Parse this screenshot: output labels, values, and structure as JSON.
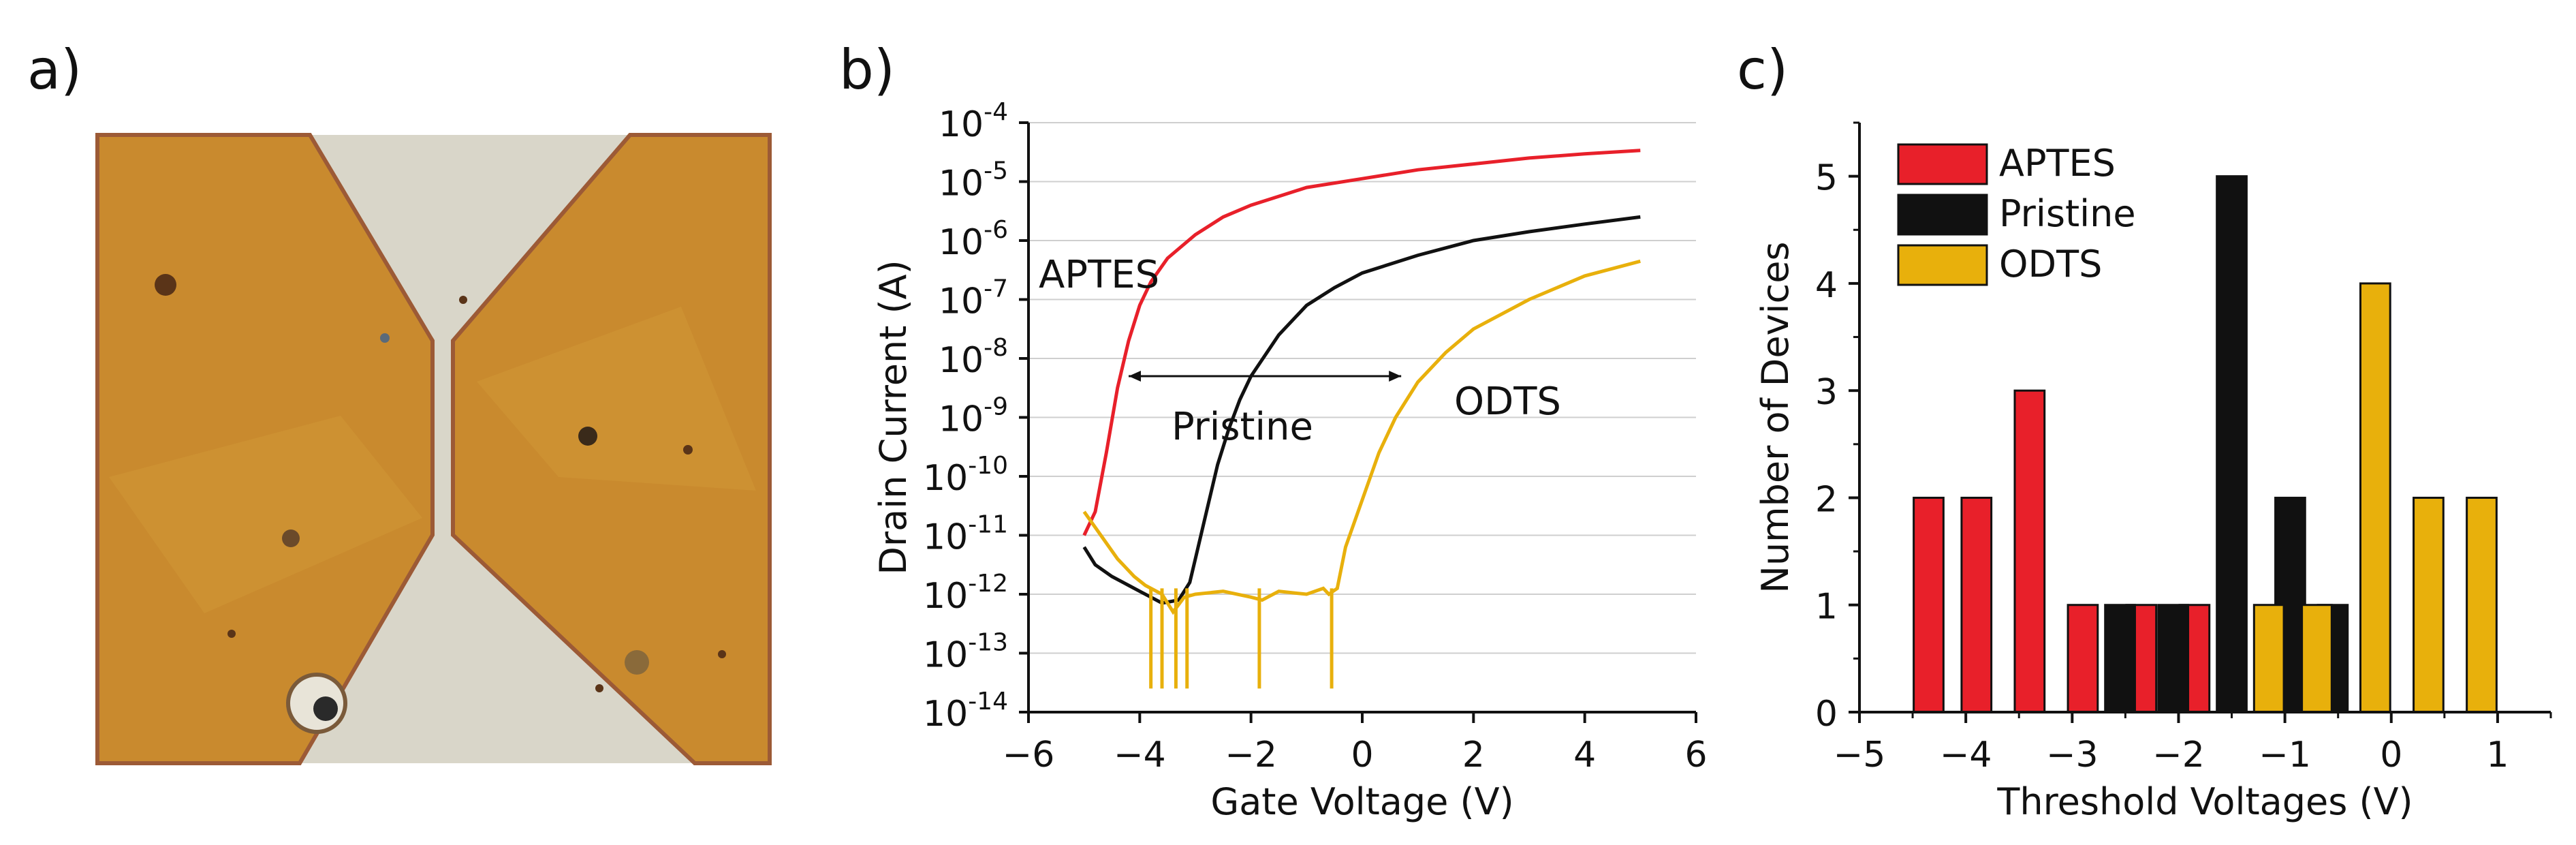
{
  "panels": {
    "a": {
      "label": "a)"
    },
    "b": {
      "label": "b)"
    },
    "c": {
      "label": "c)"
    }
  },
  "colors": {
    "aptes": "#e8202a",
    "pristine": "#111111",
    "odts": "#e8b00c",
    "electrode": "#c98a2e",
    "channel": "#d9d6c9"
  },
  "chart_data": [
    {
      "id": "b",
      "type": "line",
      "xlabel": "Gate Voltage (V)",
      "ylabel": "Drain Current (A)",
      "xlim": [
        -6,
        6
      ],
      "xticks": [
        -6,
        -4,
        -2,
        0,
        2,
        4,
        6
      ],
      "ylim_exp": [
        -14,
        -4
      ],
      "yscale": "log",
      "ytick_labels": [
        {
          "base": "10",
          "exp": "-4"
        },
        {
          "base": "10",
          "exp": "-5"
        },
        {
          "base": "10",
          "exp": "-6"
        },
        {
          "base": "10",
          "exp": "-7"
        },
        {
          "base": "10",
          "exp": "-8"
        },
        {
          "base": "10",
          "exp": "-9"
        },
        {
          "base": "10",
          "exp": "-10"
        },
        {
          "base": "10",
          "exp": "-11"
        },
        {
          "base": "10",
          "exp": "-12"
        },
        {
          "base": "10",
          "exp": "-13"
        },
        {
          "base": "10",
          "exp": "-14"
        }
      ],
      "grid": true,
      "series": [
        {
          "name": "APTES",
          "color": "#e8202a",
          "x": [
            -5.0,
            -4.8,
            -4.6,
            -4.4,
            -4.2,
            -4.0,
            -3.8,
            -3.5,
            -3.0,
            -2.5,
            -2.0,
            -1.5,
            -1.0,
            0.0,
            1.0,
            2.0,
            3.0,
            4.0,
            5.0
          ],
          "log_y": [
            -11.0,
            -10.6,
            -9.6,
            -8.5,
            -7.7,
            -7.1,
            -6.7,
            -6.3,
            -5.9,
            -5.6,
            -5.4,
            -5.25,
            -5.1,
            -4.95,
            -4.8,
            -4.7,
            -4.6,
            -4.53,
            -4.47
          ]
        },
        {
          "name": "Pristine",
          "color": "#111111",
          "x": [
            -5.0,
            -4.8,
            -4.5,
            -4.2,
            -4.0,
            -3.8,
            -3.6,
            -3.3,
            -3.1,
            -3.0,
            -2.8,
            -2.6,
            -2.4,
            -2.2,
            -2.0,
            -1.5,
            -1.0,
            -0.5,
            0.0,
            1.0,
            2.0,
            3.0,
            4.0,
            5.0
          ],
          "log_y": [
            -11.2,
            -11.5,
            -11.7,
            -11.85,
            -11.95,
            -12.05,
            -12.15,
            -12.1,
            -11.8,
            -11.4,
            -10.6,
            -9.8,
            -9.2,
            -8.7,
            -8.3,
            -7.6,
            -7.1,
            -6.8,
            -6.55,
            -6.25,
            -6.0,
            -5.85,
            -5.72,
            -5.6
          ]
        },
        {
          "name": "ODTS",
          "color": "#e8b00c",
          "x": [
            -5.0,
            -4.7,
            -4.4,
            -4.1,
            -3.9,
            -3.6,
            -3.4,
            -3.2,
            -3.0,
            -2.5,
            -2.0,
            -1.8,
            -1.5,
            -1.0,
            -0.7,
            -0.6,
            -0.45,
            -0.3,
            0.0,
            0.3,
            0.6,
            1.0,
            1.5,
            2.0,
            3.0,
            4.0,
            5.0
          ],
          "log_y": [
            -10.6,
            -11.0,
            -11.4,
            -11.7,
            -11.85,
            -12.0,
            -12.3,
            -12.05,
            -12.0,
            -11.95,
            -12.05,
            -12.1,
            -11.95,
            -12.0,
            -11.9,
            -12.0,
            -11.9,
            -11.2,
            -10.4,
            -9.6,
            -9.0,
            -8.4,
            -7.9,
            -7.5,
            -7.0,
            -6.6,
            -6.35
          ]
        }
      ],
      "annotations": {
        "aptes": "APTES",
        "pristine": "Pristine",
        "odts": "ODTS",
        "shift_arrow": {
          "x_from": -4.2,
          "x_to": 0.7,
          "log_y": -8.3
        }
      }
    },
    {
      "id": "c",
      "type": "bar",
      "xlabel": "Threshold Voltages (V)",
      "ylabel": "Number of Devices",
      "xlim": [
        -5,
        1.5
      ],
      "xticks": [
        -5,
        -4,
        -3,
        -2,
        -1,
        0,
        1
      ],
      "ylim": [
        0,
        5.5
      ],
      "yticks": [
        0,
        1,
        2,
        3,
        4,
        5
      ],
      "bar_width": 0.28,
      "legend": {
        "position": "top-left"
      },
      "series": [
        {
          "name": "APTES",
          "color": "#e8202a",
          "bars": [
            {
              "x": -4.35,
              "count": 2
            },
            {
              "x": -3.9,
              "count": 2
            },
            {
              "x": -3.4,
              "count": 3
            },
            {
              "x": -2.9,
              "count": 1
            },
            {
              "x": -2.35,
              "count": 1
            },
            {
              "x": -1.85,
              "count": 1
            }
          ]
        },
        {
          "name": "Pristine",
          "color": "#111111",
          "bars": [
            {
              "x": -2.55,
              "count": 1
            },
            {
              "x": -2.05,
              "count": 1
            },
            {
              "x": -1.5,
              "count": 5
            },
            {
              "x": -0.95,
              "count": 2
            },
            {
              "x": -0.55,
              "count": 1
            }
          ]
        },
        {
          "name": "ODTS",
          "color": "#e8b00c",
          "bars": [
            {
              "x": -1.15,
              "count": 1
            },
            {
              "x": -0.7,
              "count": 1
            },
            {
              "x": -0.15,
              "count": 4
            },
            {
              "x": 0.35,
              "count": 2
            },
            {
              "x": 0.85,
              "count": 2
            }
          ]
        }
      ]
    }
  ]
}
